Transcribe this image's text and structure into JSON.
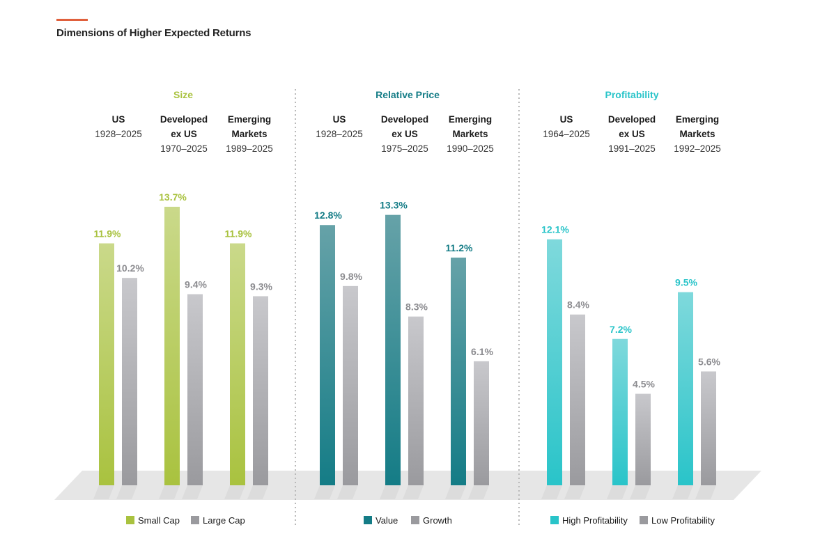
{
  "title": "Dimensions of Higher Expected Returns",
  "colors": {
    "accent": "#e0603c",
    "size": "#a9c23f",
    "size_light": "#cad98a",
    "relative_price": "#147c86",
    "relative_price_light": "#66a2a8",
    "profitability": "#29c4c9",
    "profitability_light": "#7fd9dc",
    "gray": "#9a9a9e",
    "gray_light": "#c8c8cc",
    "floor": "#e6e6e6"
  },
  "chart_data": {
    "type": "bar",
    "ylim": [
      0,
      15
    ],
    "groups": [
      {
        "name": "Size",
        "color_key": "size",
        "series": [
          "Small Cap",
          "Large Cap"
        ],
        "markets": [
          {
            "line1": "US",
            "line2": "",
            "period": "1928–2025",
            "values": [
              11.9,
              10.2
            ],
            "labels": [
              "11.9%",
              "10.2%"
            ]
          },
          {
            "line1": "Developed",
            "line2": "ex US",
            "period": "1970–2025",
            "values": [
              13.7,
              9.4
            ],
            "labels": [
              "13.7%",
              "9.4%"
            ]
          },
          {
            "line1": "Emerging",
            "line2": "Markets",
            "period": "1989–2025",
            "values": [
              11.9,
              9.3
            ],
            "labels": [
              "11.9%",
              "9.3%"
            ]
          }
        ]
      },
      {
        "name": "Relative Price",
        "color_key": "relative_price",
        "series": [
          "Value",
          "Growth"
        ],
        "markets": [
          {
            "line1": "US",
            "line2": "",
            "period": "1928–2025",
            "values": [
              12.8,
              9.8
            ],
            "labels": [
              "12.8%",
              "9.8%"
            ]
          },
          {
            "line1": "Developed",
            "line2": "ex US",
            "period": "1975–2025",
            "values": [
              13.3,
              8.3
            ],
            "labels": [
              "13.3%",
              "8.3%"
            ]
          },
          {
            "line1": "Emerging",
            "line2": "Markets",
            "period": "1990–2025",
            "values": [
              11.2,
              6.1
            ],
            "labels": [
              "11.2%",
              "6.1%"
            ]
          }
        ]
      },
      {
        "name": "Profitability",
        "color_key": "profitability",
        "series": [
          "High Profitability",
          "Low Profitability"
        ],
        "markets": [
          {
            "line1": "US",
            "line2": "",
            "period": "1964–2025",
            "values": [
              12.1,
              8.4
            ],
            "labels": [
              "12.1%",
              "8.4%"
            ]
          },
          {
            "line1": "Developed",
            "line2": "ex US",
            "period": "1991–2025",
            "values": [
              7.2,
              4.5
            ],
            "labels": [
              "7.2%",
              "4.5%"
            ]
          },
          {
            "line1": "Emerging",
            "line2": "Markets",
            "period": "1992–2025",
            "values": [
              9.5,
              5.6
            ],
            "labels": [
              "9.5%",
              "5.6%"
            ]
          }
        ]
      }
    ]
  }
}
